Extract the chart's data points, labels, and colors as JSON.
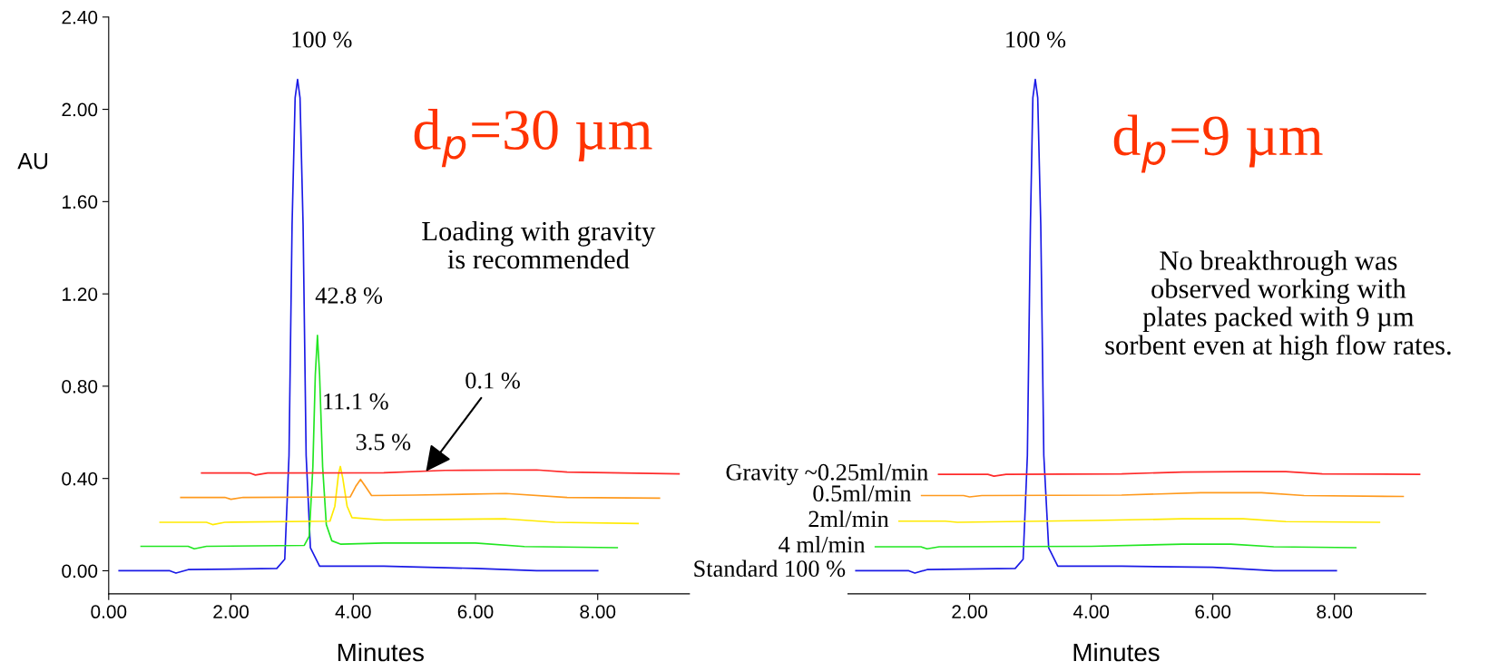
{
  "chart_data": [
    {
      "type": "line",
      "title": "d$_{p}$=30 µm",
      "xlabel": "Minutes",
      "ylabel": "AU",
      "xlim": [
        0,
        9.5
      ],
      "ylim": [
        -0.1,
        2.4
      ],
      "xticks": [
        {
          "value": 0,
          "label": "0.00"
        },
        {
          "value": 2,
          "label": "2.00"
        },
        {
          "value": 4,
          "label": "4.00"
        },
        {
          "value": 6,
          "label": "6.00"
        },
        {
          "value": 8,
          "label": "8.00"
        }
      ],
      "yticks": [
        {
          "value": 0,
          "label": "0.00"
        },
        {
          "value": 0.4,
          "label": "0.40"
        },
        {
          "value": 0.8,
          "label": "0.80"
        },
        {
          "value": 1.2,
          "label": "1.20"
        },
        {
          "value": 1.6,
          "label": "1.60"
        },
        {
          "value": 2.0,
          "label": "2.00"
        },
        {
          "value": 2.4,
          "label": "2.40"
        }
      ],
      "series": [
        {
          "color": "#1a1ae6",
          "x": [
            0.17,
            1.0,
            1.1,
            1.3,
            2.75,
            2.88,
            2.95,
            3.0,
            3.05,
            3.09,
            3.13,
            3.18,
            3.23,
            3.3,
            3.45,
            4.5,
            6.0,
            7.0,
            8.0
          ],
          "values": [
            0.0,
            0.0,
            -0.01,
            0.005,
            0.01,
            0.05,
            0.5,
            1.5,
            2.05,
            2.13,
            2.05,
            1.5,
            0.5,
            0.1,
            0.02,
            0.02,
            0.01,
            0.0,
            0.0
          ]
        },
        {
          "color": "#22e622",
          "x": [
            0.53,
            1.3,
            1.4,
            1.6,
            3.2,
            3.28,
            3.34,
            3.38,
            3.415,
            3.45,
            3.5,
            3.56,
            3.65,
            3.8,
            4.5,
            6.0,
            6.8,
            8.32
          ],
          "values": [
            0.106,
            0.106,
            0.095,
            0.106,
            0.11,
            0.15,
            0.45,
            0.85,
            1.02,
            0.85,
            0.45,
            0.2,
            0.13,
            0.115,
            0.12,
            0.12,
            0.105,
            0.1
          ]
        },
        {
          "color": "#ffea00",
          "x": [
            0.84,
            1.6,
            1.7,
            1.9,
            3.62,
            3.7,
            3.76,
            3.79,
            3.83,
            3.9,
            3.98,
            4.5,
            6.5,
            7.3,
            8.66
          ],
          "values": [
            0.21,
            0.21,
            0.2,
            0.21,
            0.215,
            0.28,
            0.42,
            0.452,
            0.4,
            0.28,
            0.23,
            0.22,
            0.225,
            0.21,
            0.205
          ]
        },
        {
          "color": "#ff9a1e",
          "x": [
            1.18,
            1.9,
            2.0,
            2.2,
            3.95,
            4.04,
            4.12,
            4.2,
            4.3,
            5.0,
            6.5,
            7.5,
            9.01
          ],
          "values": [
            0.318,
            0.318,
            0.31,
            0.318,
            0.32,
            0.365,
            0.396,
            0.365,
            0.326,
            0.328,
            0.335,
            0.318,
            0.315
          ]
        },
        {
          "color": "#ff2a2a",
          "x": [
            1.52,
            2.3,
            2.4,
            2.6,
            4.5,
            5.5,
            7.0,
            7.5,
            9.33
          ],
          "values": [
            0.424,
            0.424,
            0.415,
            0.424,
            0.425,
            0.435,
            0.437,
            0.428,
            0.42
          ]
        }
      ],
      "annotations": [
        {
          "text": "100 %",
          "x": 3.09,
          "y": 2.13
        },
        {
          "text": "42.8 %",
          "x": 3.415,
          "y": 1.02
        },
        {
          "text": "11.1 %",
          "x": 3.79,
          "y": 0.452
        },
        {
          "text": "3.5 %",
          "x": 4.12,
          "y": 0.396
        },
        {
          "text": "0.1 %",
          "x": 5.19,
          "y": 0.43
        },
        "Loading with gravity\nis recommended"
      ]
    },
    {
      "type": "line",
      "title": "d$_{p}$=9 µm",
      "xlabel": "Minutes",
      "tick_labels": "x",
      "xlim": [
        0,
        9.5
      ],
      "ylim": [
        -0.1,
        2.4
      ],
      "xticks": [
        {
          "value": 2,
          "label": "2.00"
        },
        {
          "value": 4,
          "label": "4.00"
        },
        {
          "value": 6,
          "label": "6.00"
        },
        {
          "value": 8,
          "label": "8.00"
        }
      ],
      "series": [
        {
          "name": "Standard 100 %",
          "color": "#1a1ae6",
          "x": [
            0.13,
            1.0,
            1.1,
            1.3,
            2.75,
            2.88,
            2.95,
            3.0,
            3.04,
            3.08,
            3.12,
            3.17,
            3.22,
            3.3,
            3.45,
            4.5,
            6.0,
            7.0,
            8.03
          ],
          "values": [
            0.0,
            0.0,
            -0.01,
            0.005,
            0.01,
            0.05,
            0.5,
            1.5,
            2.05,
            2.13,
            2.05,
            1.5,
            0.5,
            0.1,
            0.02,
            0.02,
            0.015,
            0.0,
            0.0
          ]
        },
        {
          "name": "4 ml/min",
          "color": "#22e622",
          "x": [
            0.45,
            1.2,
            1.3,
            1.5,
            4.0,
            5.5,
            6.3,
            7.0,
            8.35
          ],
          "values": [
            0.104,
            0.104,
            0.095,
            0.104,
            0.106,
            0.115,
            0.115,
            0.104,
            0.1
          ]
        },
        {
          "name": "2ml/min",
          "color": "#ffea00",
          "x": [
            0.84,
            1.6,
            1.8,
            4.0,
            5.5,
            6.5,
            7.2,
            8.74
          ],
          "values": [
            0.215,
            0.215,
            0.21,
            0.218,
            0.225,
            0.225,
            0.213,
            0.21
          ]
        },
        {
          "name": "0.5ml/min",
          "color": "#ff9a1e",
          "x": [
            1.21,
            1.9,
            2.0,
            2.2,
            4.5,
            5.8,
            6.8,
            7.5,
            9.13
          ],
          "values": [
            0.326,
            0.326,
            0.32,
            0.326,
            0.328,
            0.338,
            0.338,
            0.326,
            0.322
          ]
        },
        {
          "name": "Gravity ~0.25ml/min",
          "color": "#ff2a2a",
          "x": [
            1.49,
            2.3,
            2.4,
            2.6,
            4.5,
            5.5,
            6.5,
            7.2,
            7.8,
            9.4
          ],
          "values": [
            0.418,
            0.418,
            0.41,
            0.418,
            0.42,
            0.428,
            0.43,
            0.43,
            0.42,
            0.418
          ]
        }
      ],
      "annotations": [
        {
          "text": "100 %",
          "x": 3.08,
          "y": 2.13
        },
        "No breakthrough was\nobserved working with\nplates packed with 9 µm\nsorbent even at high flow rates."
      ]
    }
  ]
}
